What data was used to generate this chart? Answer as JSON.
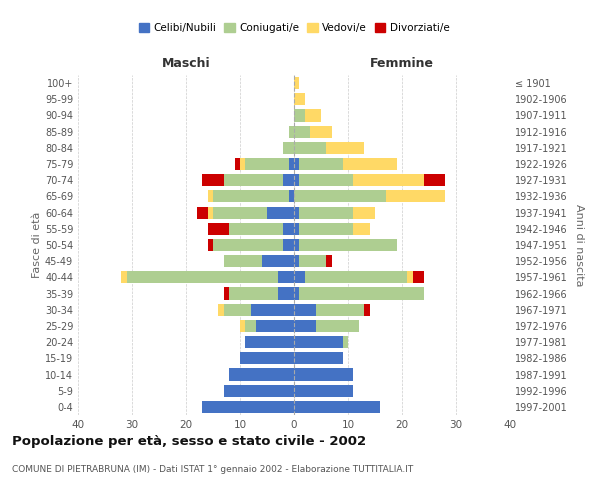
{
  "age_groups": [
    "0-4",
    "5-9",
    "10-14",
    "15-19",
    "20-24",
    "25-29",
    "30-34",
    "35-39",
    "40-44",
    "45-49",
    "50-54",
    "55-59",
    "60-64",
    "65-69",
    "70-74",
    "75-79",
    "80-84",
    "85-89",
    "90-94",
    "95-99",
    "100+"
  ],
  "birth_years": [
    "1997-2001",
    "1992-1996",
    "1987-1991",
    "1982-1986",
    "1977-1981",
    "1972-1976",
    "1967-1971",
    "1962-1966",
    "1957-1961",
    "1952-1956",
    "1947-1951",
    "1942-1946",
    "1937-1941",
    "1932-1936",
    "1927-1931",
    "1922-1926",
    "1917-1921",
    "1912-1916",
    "1907-1911",
    "1902-1906",
    "≤ 1901"
  ],
  "male": {
    "celibi": [
      17,
      13,
      12,
      10,
      9,
      7,
      8,
      3,
      3,
      6,
      2,
      2,
      5,
      1,
      2,
      1,
      0,
      0,
      0,
      0,
      0
    ],
    "coniugati": [
      0,
      0,
      0,
      0,
      0,
      2,
      5,
      9,
      28,
      7,
      13,
      10,
      10,
      14,
      11,
      8,
      2,
      1,
      0,
      0,
      0
    ],
    "vedovi": [
      0,
      0,
      0,
      0,
      0,
      1,
      1,
      0,
      1,
      0,
      0,
      0,
      1,
      1,
      0,
      1,
      0,
      0,
      0,
      0,
      0
    ],
    "divorziati": [
      0,
      0,
      0,
      0,
      0,
      0,
      0,
      1,
      0,
      0,
      1,
      4,
      2,
      0,
      4,
      1,
      0,
      0,
      0,
      0,
      0
    ]
  },
  "female": {
    "nubili": [
      16,
      11,
      11,
      9,
      9,
      4,
      4,
      1,
      2,
      1,
      1,
      1,
      1,
      0,
      1,
      1,
      0,
      0,
      0,
      0,
      0
    ],
    "coniugate": [
      0,
      0,
      0,
      0,
      1,
      8,
      9,
      23,
      19,
      5,
      18,
      10,
      10,
      17,
      10,
      8,
      6,
      3,
      2,
      0,
      0
    ],
    "vedove": [
      0,
      0,
      0,
      0,
      0,
      0,
      0,
      0,
      1,
      0,
      0,
      3,
      4,
      11,
      13,
      10,
      7,
      4,
      3,
      2,
      1
    ],
    "divorziate": [
      0,
      0,
      0,
      0,
      0,
      0,
      1,
      0,
      2,
      1,
      0,
      0,
      0,
      0,
      4,
      0,
      0,
      0,
      0,
      0,
      0
    ]
  },
  "colors": {
    "celibi": "#4472C4",
    "coniugati": "#AECE91",
    "vedovi": "#FFD966",
    "divorziati": "#CC0000"
  },
  "title": "Popolazione per età, sesso e stato civile - 2002",
  "subtitle": "COMUNE DI PIETRABRUNA (IM) - Dati ISTAT 1° gennaio 2002 - Elaborazione TUTTITALIA.IT",
  "xlabel_left": "Maschi",
  "xlabel_right": "Femmine",
  "ylabel_left": "Fasce di età",
  "ylabel_right": "Anni di nascita",
  "xlim": 40,
  "legend_labels": [
    "Celibi/Nubili",
    "Coniugati/e",
    "Vedovi/e",
    "Divorziati/e"
  ],
  "bg_color": "#ffffff",
  "grid_color": "#cccccc"
}
